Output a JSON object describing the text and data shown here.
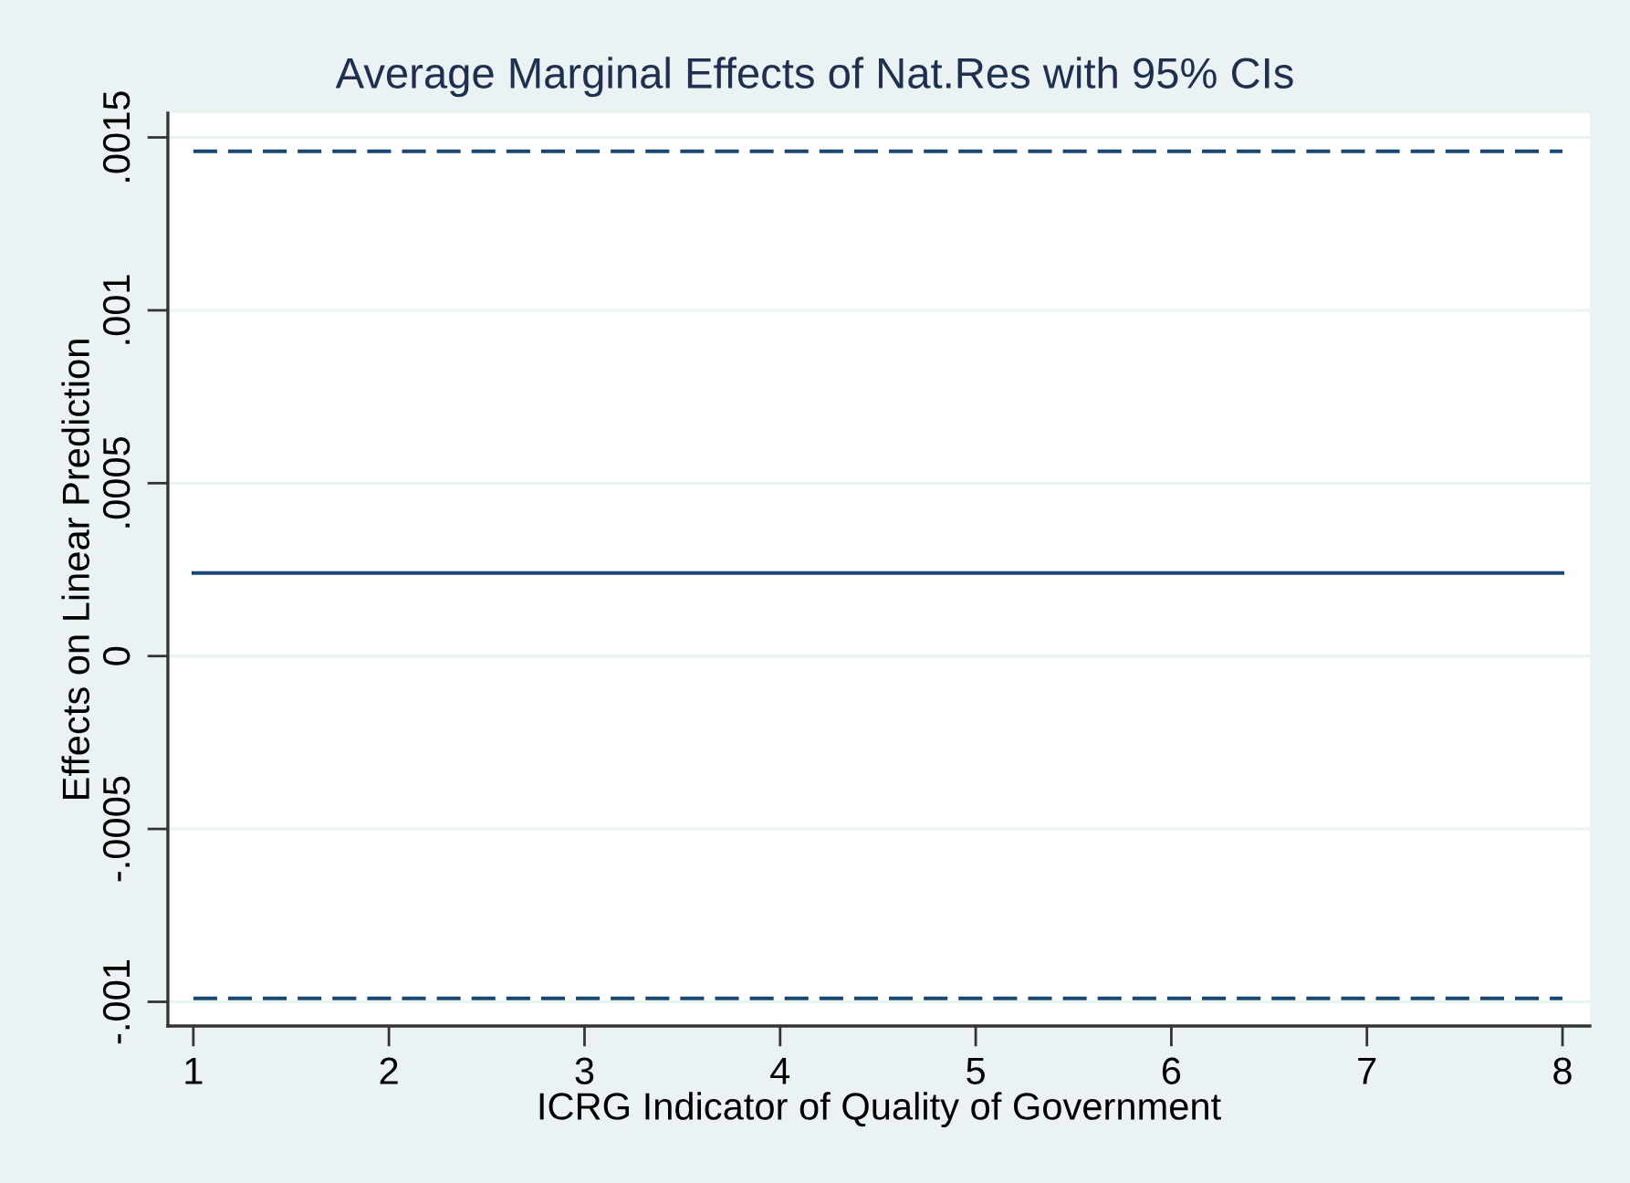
{
  "chart_data": {
    "type": "line",
    "title": "Average Marginal Effects of Nat.Res with 95% CIs",
    "xlabel": "ICRG Indicator of Quality of Government",
    "ylabel": "Effects on Linear Prediction",
    "x": [
      1,
      8
    ],
    "series": [
      {
        "color": "#1a476f",
        "line_style": "solid",
        "values": [
          0.00024,
          0.00024
        ]
      },
      {
        "color": "#1a476f",
        "line_style": "dashed",
        "values": [
          0.00146,
          0.00146
        ]
      },
      {
        "color": "#1a476f",
        "line_style": "dashed",
        "values": [
          -0.00099,
          -0.00099
        ]
      }
    ],
    "xlim": [
      0.87,
      8.14
    ],
    "xticks": [
      1,
      2,
      3,
      4,
      5,
      6,
      7,
      8
    ],
    "ylim": [
      -0.00107,
      0.00157
    ],
    "yticks": [
      {
        "value": -0.001,
        "label": "-.001"
      },
      {
        "value": -0.0005,
        "label": "-.0005"
      },
      {
        "value": 0,
        "label": "0"
      },
      {
        "value": 0.0005,
        "label": ".0005"
      },
      {
        "value": 0.001,
        "label": ".001"
      },
      {
        "value": 0.0015,
        "label": ".0015"
      }
    ],
    "grid": "y"
  }
}
